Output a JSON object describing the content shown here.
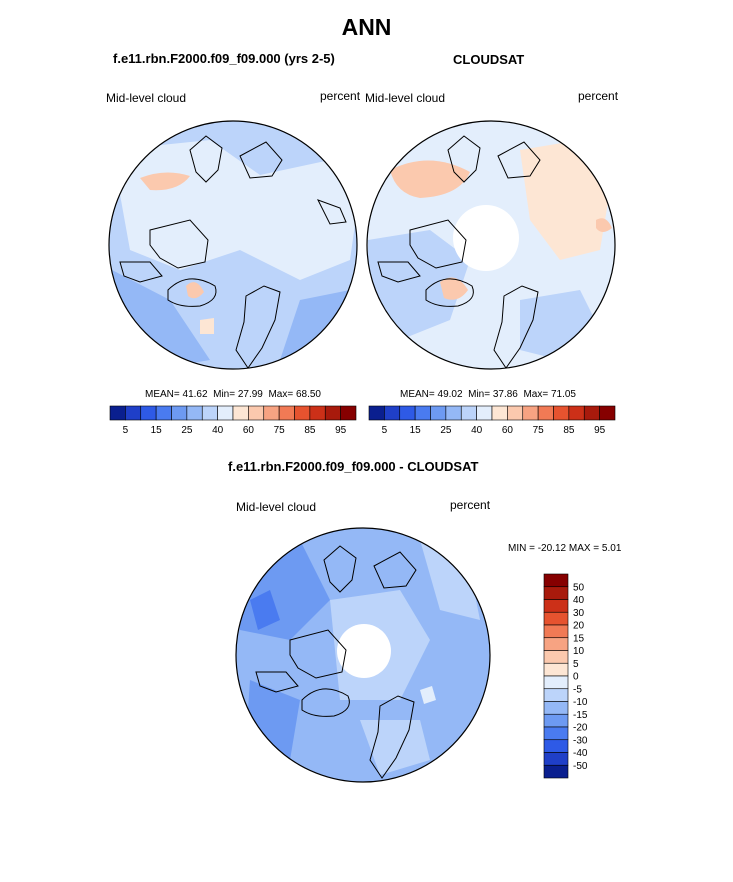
{
  "page_title": "ANN",
  "panels": [
    {
      "title": "f.e11.rbn.F2000.f09_f09.000 (yrs 2-5)",
      "left_label": "Mid-level cloud",
      "right_label": "percent",
      "stats": {
        "mean_label": "MEAN=",
        "mean": "41.62",
        "min_label": "Min=",
        "min": "27.99",
        "max_label": "Max=",
        "max": "68.50"
      }
    },
    {
      "title": "CLOUDSAT",
      "left_label": "Mid-level cloud",
      "right_label": "percent",
      "stats": {
        "mean_label": "MEAN=",
        "mean": "49.02",
        "min_label": "Min=",
        "min": "37.86",
        "max_label": "Max=",
        "max": "71.05"
      }
    },
    {
      "title": "f.e11.rbn.F2000.f09_f09.000 - CLOUDSAT",
      "left_label": "Mid-level cloud",
      "right_label": "percent",
      "minmax": "MIN = -20.12 MAX =   5.01"
    }
  ],
  "chart_data": [
    {
      "type": "heatmap",
      "projection": "north-polar-stereographic",
      "field": "mid-level cloud",
      "units": "percent",
      "stats": {
        "mean": 41.62,
        "min": 27.99,
        "max": 68.5
      },
      "colorbar": {
        "orientation": "horizontal",
        "levels": [
          5,
          10,
          15,
          20,
          25,
          30,
          40,
          50,
          60,
          70,
          75,
          80,
          85,
          90,
          95
        ],
        "tick_labels": [
          "5",
          "15",
          "25",
          "40",
          "60",
          "75",
          "85",
          "95"
        ],
        "colors": [
          "#0a1f8f",
          "#1f3fc8",
          "#2e5ae6",
          "#4a7bf0",
          "#6d9af2",
          "#94b8f6",
          "#bcd4fa",
          "#e3eefc",
          "#fde6d4",
          "#fbc9ae",
          "#f7a382",
          "#f17a55",
          "#e6532f",
          "#cc3018",
          "#a81a0c",
          "#860000"
        ]
      }
    },
    {
      "type": "heatmap",
      "projection": "north-polar-stereographic",
      "field": "mid-level cloud",
      "units": "percent",
      "stats": {
        "mean": 49.02,
        "min": 37.86,
        "max": 71.05
      },
      "missing_data_region": "polar cap (white)",
      "colorbar": {
        "orientation": "horizontal",
        "levels": [
          5,
          10,
          15,
          20,
          25,
          30,
          40,
          50,
          60,
          70,
          75,
          80,
          85,
          90,
          95
        ],
        "tick_labels": [
          "5",
          "15",
          "25",
          "40",
          "60",
          "75",
          "85",
          "95"
        ],
        "colors": [
          "#0a1f8f",
          "#1f3fc8",
          "#2e5ae6",
          "#4a7bf0",
          "#6d9af2",
          "#94b8f6",
          "#bcd4fa",
          "#e3eefc",
          "#fde6d4",
          "#fbc9ae",
          "#f7a382",
          "#f17a55",
          "#e6532f",
          "#cc3018",
          "#a81a0c",
          "#860000"
        ]
      }
    },
    {
      "type": "heatmap",
      "projection": "north-polar-stereographic",
      "field": "mid-level cloud difference",
      "units": "percent",
      "stats": {
        "min": -20.12,
        "max": 5.01
      },
      "missing_data_region": "polar cap (white)",
      "colorbar": {
        "orientation": "vertical",
        "levels": [
          50,
          40,
          30,
          20,
          15,
          10,
          5,
          0,
          -5,
          -10,
          -15,
          -20,
          -30,
          -40,
          -50
        ],
        "tick_labels": [
          "50",
          "40",
          "30",
          "20",
          "15",
          "10",
          "5",
          "0",
          "-5",
          "-10",
          "-15",
          "-20",
          "-30",
          "-40",
          "-50"
        ],
        "colors": [
          "#860000",
          "#a81a0c",
          "#cc3018",
          "#e6532f",
          "#f17a55",
          "#f7a382",
          "#fbc9ae",
          "#fde6d4",
          "#e3eefc",
          "#bcd4fa",
          "#94b8f6",
          "#6d9af2",
          "#4a7bf0",
          "#2e5ae6",
          "#1f3fc8",
          "#0a1f8f"
        ]
      }
    }
  ]
}
